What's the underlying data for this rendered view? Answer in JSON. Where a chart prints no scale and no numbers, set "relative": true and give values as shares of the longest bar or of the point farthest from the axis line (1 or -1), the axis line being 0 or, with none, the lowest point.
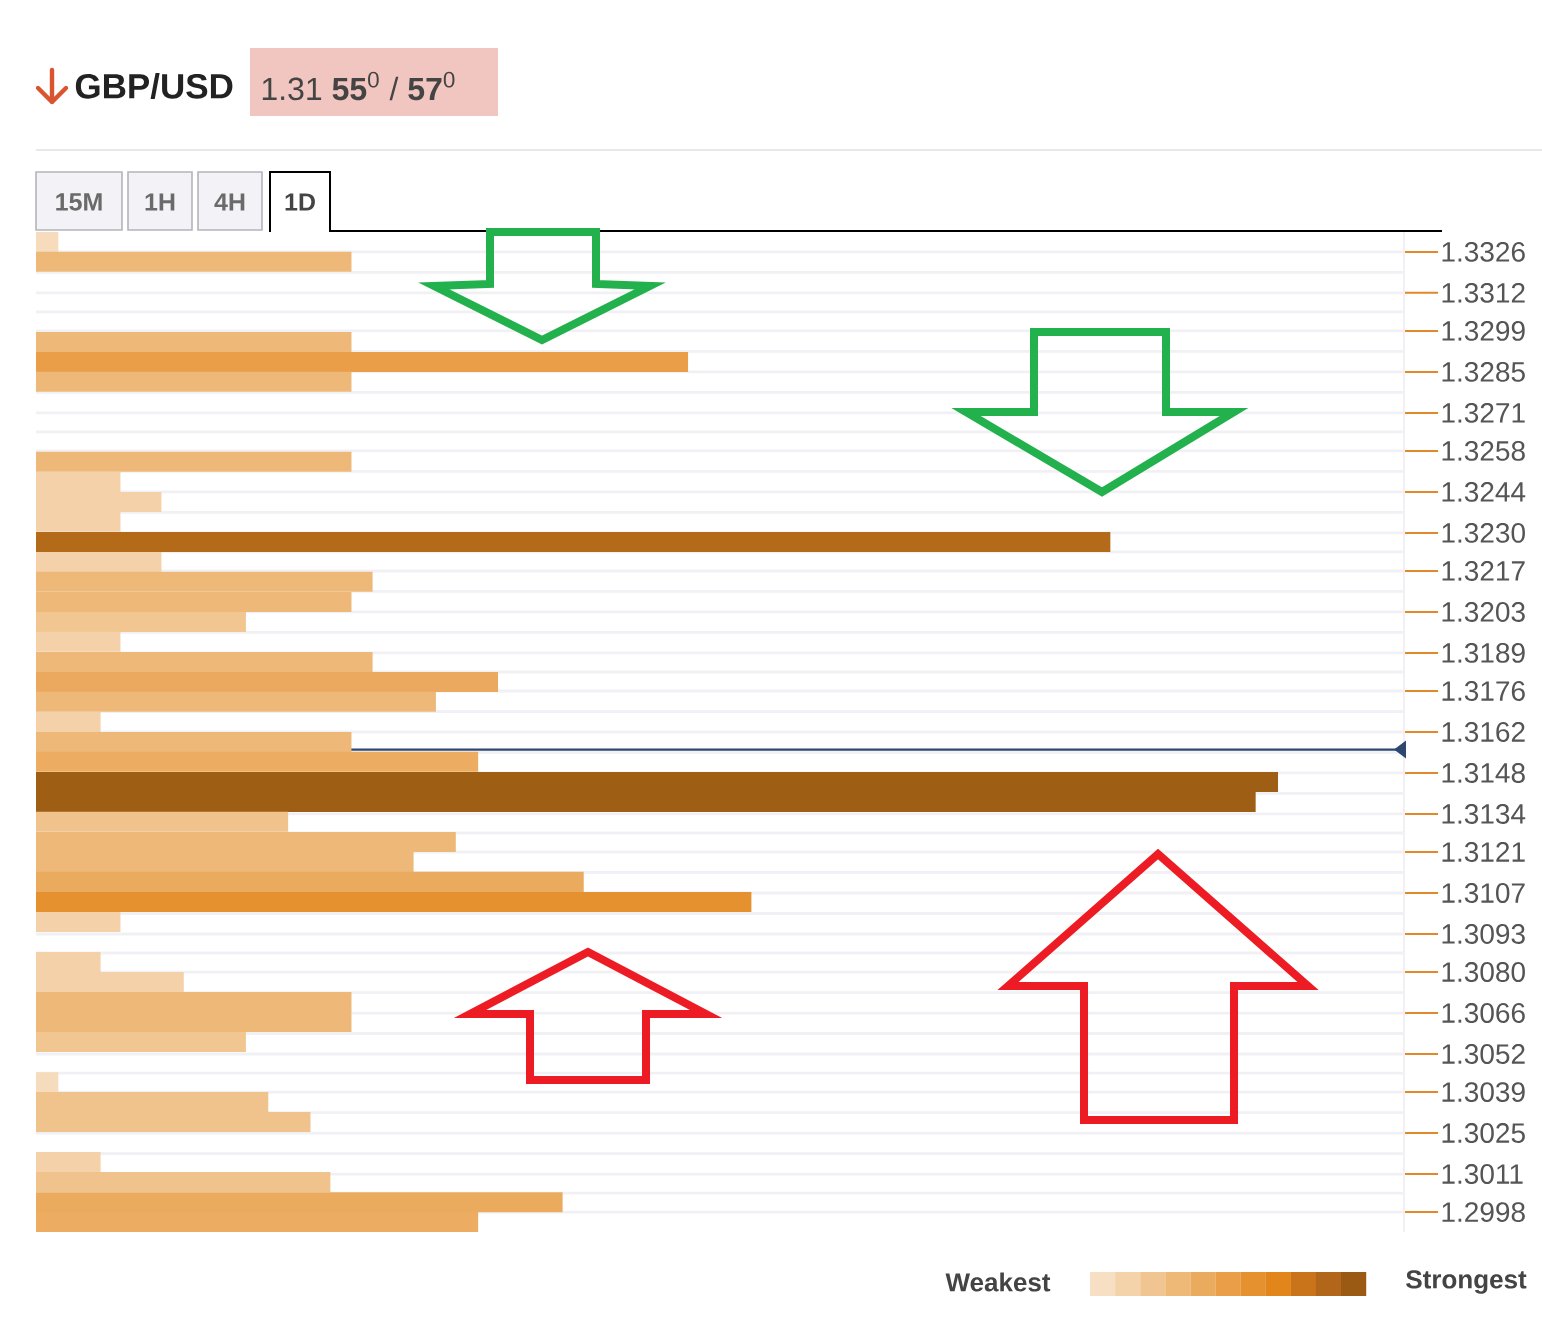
{
  "chart_data": {
    "type": "bar",
    "orientation": "horizontal",
    "relative": true,
    "title": "GBP/USD",
    "subtitle": "1.31 **55**$^{0}$ / **57**$^{0}$",
    "x": [
      1.33294,
      1.33226,
      1.32952,
      1.32884,
      1.32816,
      1.32543,
      1.32474,
      1.32406,
      1.32338,
      1.32269,
      1.32201,
      1.32133,
      1.32064,
      1.31996,
      1.31928,
      1.31859,
      1.31791,
      1.31723,
      1.31654,
      1.31586,
      1.31518,
      1.31449,
      1.31381,
      1.31313,
      1.31244,
      1.31176,
      1.31108,
      1.31039,
      1.30971,
      1.30834,
      1.30766,
      1.30698,
      1.30629,
      1.30561,
      1.30424,
      1.30356,
      1.30288,
      1.30151,
      1.30083,
      1.30014,
      1.29946
    ],
    "values": [
      0.018,
      0.254,
      0.254,
      0.525,
      0.254,
      0.254,
      0.068,
      0.101,
      0.068,
      0.865,
      0.101,
      0.271,
      0.254,
      0.169,
      0.068,
      0.271,
      0.372,
      0.322,
      0.052,
      0.254,
      0.356,
      1,
      0.982,
      0.203,
      0.338,
      0.304,
      0.441,
      0.576,
      0.068,
      0.052,
      0.119,
      0.254,
      0.254,
      0.169,
      0.018,
      0.187,
      0.221,
      0.052,
      0.237,
      0.424,
      0.356
    ],
    "colors": [
      "#f6dcbc",
      "#eeb878",
      "#eeb878",
      "#e99e47",
      "#eeb878",
      "#eeb878",
      "#f4d1a8",
      "#f4d1a8",
      "#f4d1a8",
      "#b46b19",
      "#f4d1a8",
      "#eeb878",
      "#eeb878",
      "#f1c690",
      "#f4d1a8",
      "#eeb878",
      "#eba95f",
      "#eeb878",
      "#f4d1a8",
      "#eeb878",
      "#ecad62",
      "#9e5e14",
      "#9e5e14",
      "#f0c28c",
      "#eeb878",
      "#eeb878",
      "#ebab5f",
      "#e69130",
      "#f4d1a8",
      "#f4d1a8",
      "#f4d1a8",
      "#eeb878",
      "#eeb878",
      "#f1c690",
      "#f6dcbc",
      "#f0c28c",
      "#f0c28c",
      "#f4d1a8",
      "#f0c28c",
      "#ebab5f",
      "#ecad62"
    ],
    "ylim": [
      1.29912,
      1.33328
    ],
    "yticks": [
      1.3326,
      1.3312,
      1.3299,
      1.3285,
      1.3271,
      1.3258,
      1.3244,
      {
        "value": 1.323,
        "label": "1.3230"
      },
      1.3217,
      1.3203,
      1.3189,
      1.3176,
      1.3162,
      1.3148,
      1.3134,
      1.3121,
      1.3107,
      1.3093,
      {
        "value": 1.308,
        "label": "1.3080"
      },
      1.3066,
      1.3052,
      1.3039,
      1.3025,
      1.3011,
      1.2998
    ],
    "grid": "y",
    "ref_lines": [
      {
        "axis": "y",
        "value": 1.3156,
        "color": "#2c4770"
      }
    ],
    "annotations": [
      "15M",
      "1H",
      "4H",
      "1D",
      "Weakest",
      "Strongest"
    ]
  }
}
